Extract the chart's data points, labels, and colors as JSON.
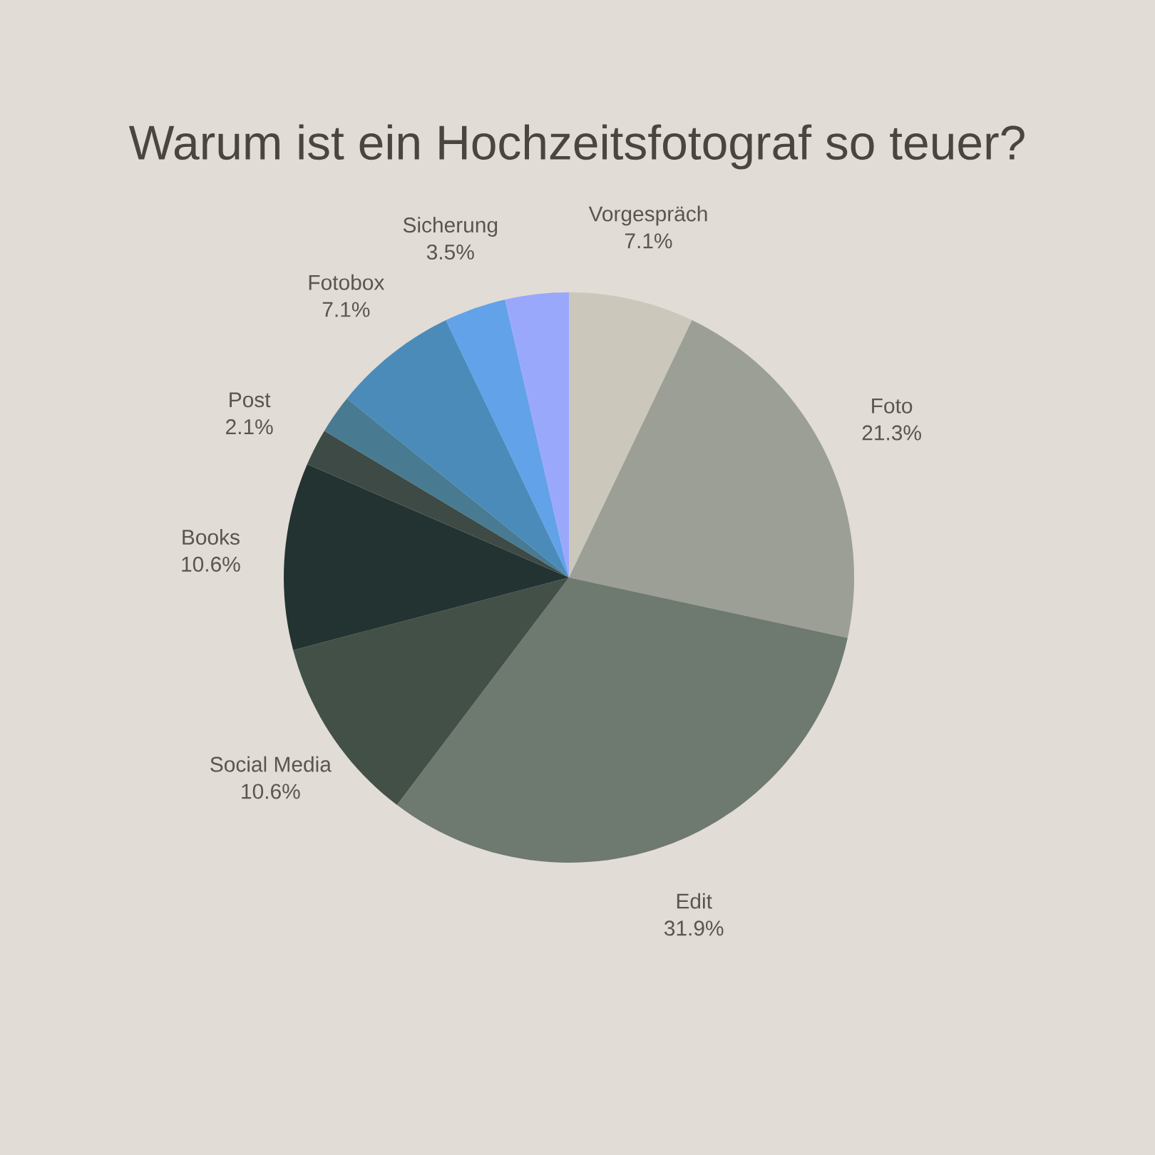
{
  "chart_data": {
    "type": "pie",
    "title": "Warum ist ein Hochzeitsfotograf so teuer?",
    "categories": [
      "Vorgespräch",
      "Foto",
      "Edit",
      "Social Media",
      "Books",
      "Post",
      null,
      "Fotobox",
      "Sicherung",
      null
    ],
    "values": [
      7.1,
      21.3,
      31.9,
      10.6,
      10.6,
      2.1,
      2.2,
      7.1,
      3.5,
      3.6
    ],
    "colors": [
      "#cbc8bb",
      "#9c9f96",
      "#6e7970",
      "#435048",
      "#233331",
      "#3e4a46",
      "#487b91",
      "#4a8bba",
      "#62a2e8",
      "#9aa8fc"
    ],
    "value_labels": [
      "7.1%",
      "21.3%",
      "31.9%",
      "10.6%",
      "10.6%",
      "2.1%",
      null,
      "7.1%",
      "3.5%",
      null
    ]
  }
}
